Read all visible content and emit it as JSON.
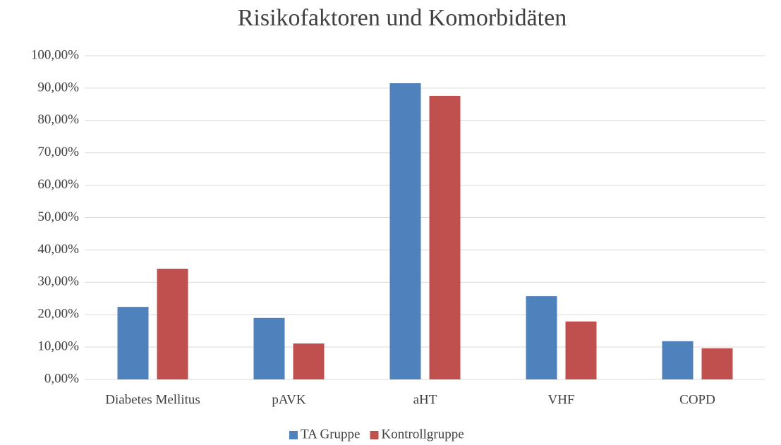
{
  "chart_data": {
    "type": "bar",
    "title": "Risikofaktoren und Komorbidäten",
    "categories": [
      "Diabetes Mellitus",
      "pAVK",
      "aHT",
      "VHF",
      "COPD"
    ],
    "series": [
      {
        "name": "TA Gruppe",
        "color": "#4f81bd",
        "values": [
          22.4,
          19.0,
          91.5,
          25.7,
          11.8
        ]
      },
      {
        "name": "Kontrollgruppe",
        "color": "#c0504d",
        "values": [
          34.2,
          11.1,
          87.6,
          17.9,
          9.6
        ]
      }
    ],
    "ylim": [
      0,
      100
    ],
    "yticks": [
      {
        "value": 0,
        "label": "0,00%"
      },
      {
        "value": 10,
        "label": "10,00%"
      },
      {
        "value": 20,
        "label": "20,00%"
      },
      {
        "value": 30,
        "label": "30,00%"
      },
      {
        "value": 40,
        "label": "40,00%"
      },
      {
        "value": 50,
        "label": "50,00%"
      },
      {
        "value": 60,
        "label": "60,00%"
      },
      {
        "value": 70,
        "label": "70,00%"
      },
      {
        "value": 80,
        "label": "80,00%"
      },
      {
        "value": 90,
        "label": "90,00%"
      },
      {
        "value": 100,
        "label": "100,00%"
      }
    ],
    "grid": true,
    "legend": "bottom"
  }
}
